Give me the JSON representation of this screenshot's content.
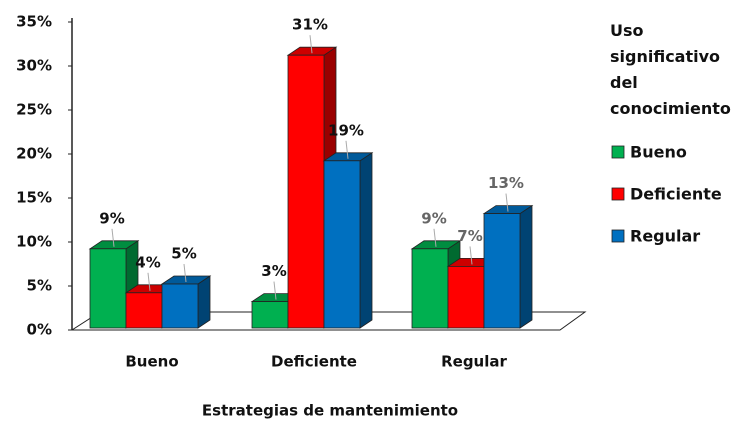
{
  "chart_data": {
    "type": "bar3d",
    "categories": [
      "Bueno",
      "Deficiente",
      "Regular"
    ],
    "series": [
      {
        "name": "Bueno",
        "color": "#00b050",
        "values": [
          9,
          3,
          9
        ],
        "value_labels": [
          "9%",
          "3%",
          "9%"
        ]
      },
      {
        "name": "Deficiente",
        "color": "#ff0000",
        "values": [
          4,
          31,
          7
        ],
        "value_labels": [
          "4%",
          "31%",
          "7%"
        ]
      },
      {
        "name": "Regular",
        "color": "#0070c0",
        "values": [
          5,
          19,
          13
        ],
        "value_labels": [
          "5%",
          "19%",
          "13%"
        ]
      }
    ],
    "ylim": [
      0,
      35
    ],
    "yticks": [
      {
        "value": 0,
        "label": "0%"
      },
      {
        "value": 5,
        "label": "5%"
      },
      {
        "value": 10,
        "label": "10%"
      },
      {
        "value": 15,
        "label": "15%"
      },
      {
        "value": 20,
        "label": "20%"
      },
      {
        "value": 25,
        "label": "25%"
      },
      {
        "value": 30,
        "label": "30%"
      },
      {
        "value": 35,
        "label": "35%"
      }
    ],
    "xlabel": "Estrategias de mantenimiento",
    "legend_title": "Uso significativo del conocimiento",
    "legend": "right",
    "grid": false
  }
}
